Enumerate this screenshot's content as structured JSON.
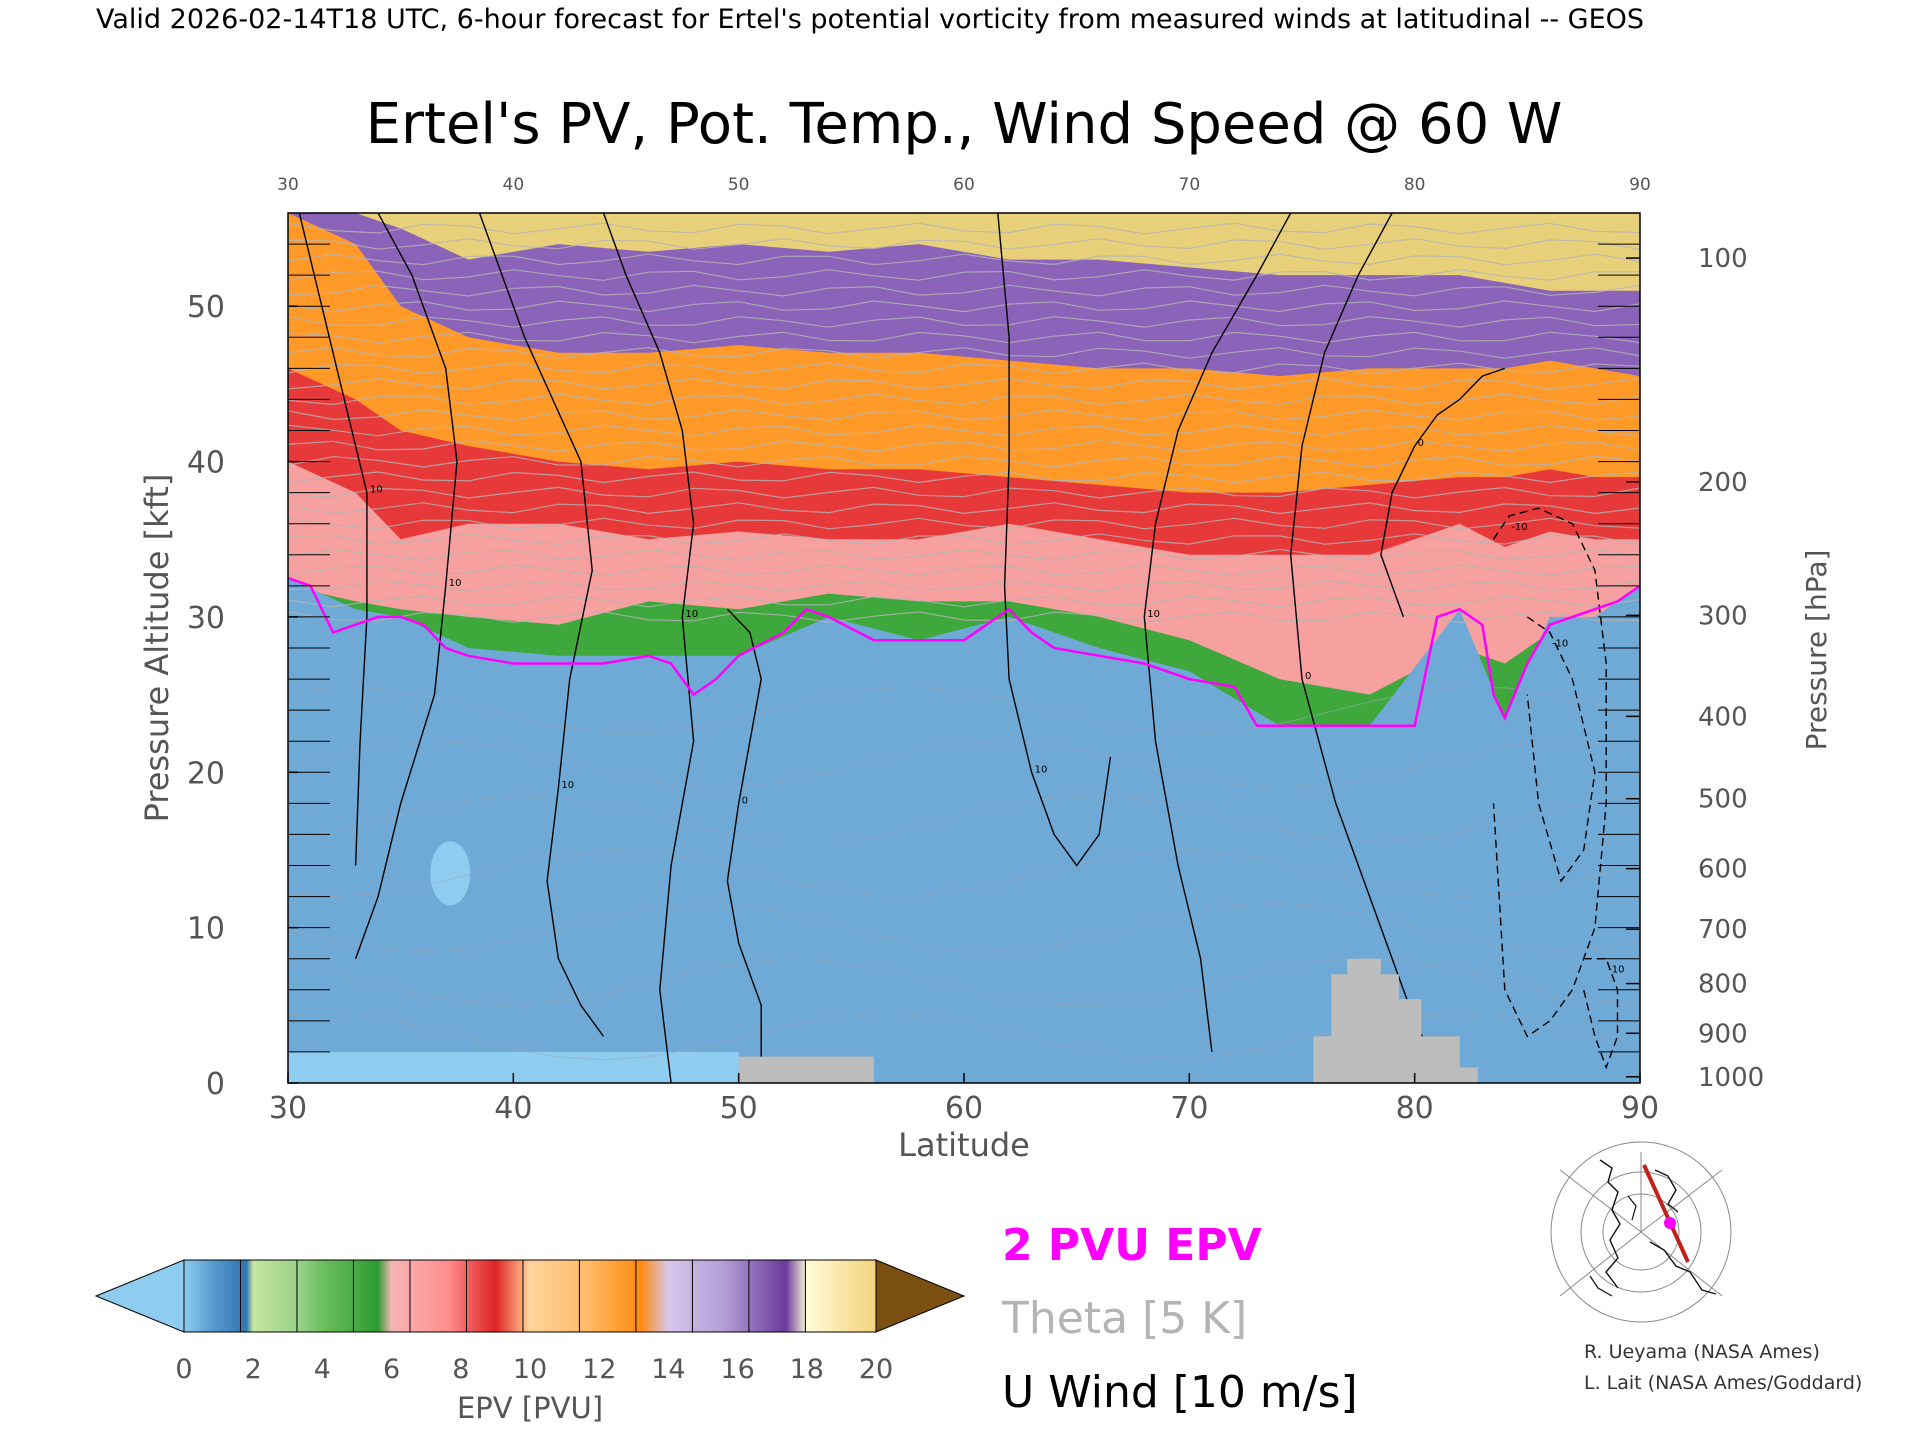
{
  "header": {
    "valid_line": "Valid 2026-02-14T18 UTC, 6-hour forecast for Ertel's potential vorticity from measured winds at latitudinal -- GEOS"
  },
  "chart_data": {
    "type": "heatmap",
    "title": "Ertel's PV, Pot. Temp., Wind Speed @ 60 W",
    "xlabel": "Latitude",
    "ylabel_left": "Pressure Altitude [kft]",
    "ylabel_right": "Pressure [hPa]",
    "xlim": [
      30,
      90
    ],
    "ylim": [
      0,
      56
    ],
    "x_ticks": [
      "30",
      "40",
      "50",
      "60",
      "70",
      "80",
      "90"
    ],
    "y_ticks_left": [
      "0",
      "10",
      "20",
      "30",
      "40",
      "50"
    ],
    "y_ticks_right": [
      {
        "label": "100",
        "kft": 53.1
      },
      {
        "label": "200",
        "kft": 38.7
      },
      {
        "label": "300",
        "kft": 30.1
      },
      {
        "label": "400",
        "kft": 23.6
      },
      {
        "label": "500",
        "kft": 18.3
      },
      {
        "label": "600",
        "kft": 13.8
      },
      {
        "label": "700",
        "kft": 9.9
      },
      {
        "label": "800",
        "kft": 6.4
      },
      {
        "label": "900",
        "kft": 3.2
      },
      {
        "label": "1000",
        "kft": 0.4
      }
    ],
    "epv_layer_tops_kft": [
      {
        "name": "stratosphere",
        "lat": [
          30,
          33,
          35,
          38,
          42,
          46,
          50,
          54,
          58,
          62,
          66,
          70,
          74,
          78,
          82,
          84,
          86,
          88,
          90
        ],
        "top": [
          56,
          56,
          56,
          56,
          56,
          56,
          56,
          56,
          56,
          56,
          56,
          56,
          56,
          56,
          56,
          56,
          56,
          56,
          56
        ]
      },
      {
        "name": "purple",
        "lat": [
          30,
          33,
          35,
          38,
          42,
          46,
          50,
          54,
          58,
          62,
          66,
          70,
          74,
          78,
          82,
          84,
          86,
          88,
          90
        ],
        "top": [
          56,
          56,
          55,
          53,
          54,
          53.5,
          54,
          53.5,
          54,
          53,
          53,
          52.5,
          52,
          52,
          52,
          51.5,
          51,
          51,
          51
        ]
      },
      {
        "name": "orange",
        "lat": [
          30,
          33,
          35,
          38,
          42,
          46,
          50,
          54,
          58,
          62,
          66,
          70,
          74,
          78,
          82,
          84,
          86,
          88,
          90
        ],
        "top": [
          56,
          54,
          50,
          48,
          47,
          47,
          47.5,
          47,
          47,
          46.5,
          46,
          46,
          45.5,
          46,
          46,
          46,
          46.5,
          46,
          45.5
        ]
      },
      {
        "name": "red",
        "lat": [
          30,
          33,
          35,
          38,
          42,
          46,
          50,
          54,
          58,
          62,
          66,
          70,
          74,
          78,
          82,
          84,
          86,
          88,
          90
        ],
        "top": [
          46,
          44,
          42,
          41,
          40,
          39.5,
          40,
          39.5,
          39.5,
          39,
          38.5,
          38,
          38,
          38.5,
          39,
          39,
          39.5,
          39,
          39
        ]
      },
      {
        "name": "pink",
        "lat": [
          30,
          33,
          35,
          38,
          42,
          46,
          50,
          54,
          58,
          62,
          66,
          70,
          74,
          78,
          82,
          84,
          86,
          88,
          90
        ],
        "top": [
          40,
          38,
          35,
          36,
          36,
          35,
          35.5,
          35,
          35,
          36,
          35,
          34,
          34,
          34,
          36,
          34.5,
          35.5,
          35,
          35
        ]
      },
      {
        "name": "green",
        "lat": [
          30,
          33,
          35,
          38,
          42,
          46,
          50,
          54,
          58,
          62,
          66,
          70,
          74,
          78,
          82,
          84,
          86,
          88,
          90
        ],
        "top": [
          32,
          31,
          30.5,
          30,
          29.5,
          31,
          30.5,
          31.5,
          31,
          31,
          30,
          28.5,
          26,
          25,
          28,
          27,
          29,
          30,
          31
        ]
      },
      {
        "name": "blue",
        "lat": [
          30,
          33,
          35,
          38,
          42,
          46,
          50,
          54,
          58,
          62,
          66,
          70,
          74,
          78,
          82,
          84,
          86,
          88,
          90
        ],
        "top": [
          32.5,
          30.5,
          30,
          28,
          27.5,
          27.5,
          27.5,
          30,
          28.5,
          30,
          28,
          26.5,
          23,
          23,
          30.5,
          23.5,
          30,
          30,
          32
        ]
      }
    ],
    "pv2_line": {
      "name": "2 PVU EPV",
      "lat": [
        30,
        31,
        32,
        33,
        34,
        35,
        36,
        37,
        38,
        40,
        42,
        44,
        46,
        47,
        48,
        49,
        50,
        52,
        53,
        54,
        56,
        58,
        60,
        61,
        62,
        63,
        64,
        66,
        68,
        70,
        72,
        73,
        74,
        76,
        78,
        80,
        81,
        82,
        83,
        83.5,
        84,
        85,
        86,
        87,
        88,
        89,
        90
      ],
      "kft": [
        32.5,
        32,
        29,
        29.5,
        30,
        30,
        29.5,
        28,
        27.5,
        27,
        27,
        27,
        27.5,
        27,
        25,
        26,
        27.5,
        29,
        30.5,
        30,
        28.5,
        28.5,
        28.5,
        29.5,
        30.5,
        29,
        28,
        27.5,
        27,
        26,
        25.5,
        23,
        23,
        23,
        23,
        23,
        30,
        30.5,
        29.5,
        25,
        23.5,
        27,
        29.5,
        30,
        30.5,
        31,
        32
      ]
    },
    "u_wind_contours": [
      {
        "label": "10",
        "lat": [
          30.5,
          31.5,
          32.5,
          33.5,
          33.5,
          33.2,
          33.0
        ],
        "kft": [
          56,
          50,
          44,
          38,
          30,
          22,
          14
        ]
      },
      {
        "label": "10",
        "lat": [
          34.0,
          35.5,
          37.0,
          37.5,
          37.0,
          36.5,
          35.0,
          34.0,
          33.0
        ],
        "kft": [
          56,
          52,
          46,
          40,
          32,
          25,
          18,
          12,
          8
        ]
      },
      {
        "label": "10",
        "lat": [
          38.5,
          40.5,
          43.0,
          43.5,
          42.5,
          42.0,
          41.5,
          42.0,
          43.0,
          44.0
        ],
        "kft": [
          56,
          48,
          40,
          33,
          26,
          19,
          13,
          8,
          5,
          3
        ]
      },
      {
        "label": "0",
        "lat": [
          49.5,
          50.5,
          51.0,
          50.5,
          50.0,
          49.5,
          50.0,
          51.0,
          51.0
        ],
        "kft": [
          30.5,
          29,
          26,
          22,
          18,
          13,
          9,
          5,
          0
        ]
      },
      {
        "label": "10",
        "lat": [
          44.0,
          45.0,
          46.5,
          47.5,
          48.0,
          47.5,
          48.0,
          47.0,
          46.5,
          47.0
        ],
        "kft": [
          56,
          52,
          47,
          42,
          36,
          30,
          22,
          14,
          6,
          0
        ]
      },
      {
        "label": "10",
        "lat": [
          61.5,
          62.0,
          62.0,
          61.8,
          62.0,
          63.0,
          64.0,
          65.0,
          66.0,
          66.5
        ],
        "kft": [
          56,
          48,
          40,
          32,
          26,
          20,
          16,
          14,
          16,
          21
        ]
      },
      {
        "label": "10",
        "lat": [
          74.5,
          73.0,
          71.0,
          69.5,
          68.5,
          68.0,
          68.5,
          69.5,
          70.5,
          71.0
        ],
        "kft": [
          56,
          52,
          47,
          42,
          36,
          30,
          22,
          14,
          8,
          2
        ]
      },
      {
        "label": "0",
        "lat": [
          79.0,
          77.5,
          76.0,
          75.0,
          74.5,
          75.0,
          76.5,
          78.5,
          80.0,
          81.0
        ],
        "kft": [
          56,
          52,
          47,
          41,
          34,
          26,
          18,
          10,
          4,
          1
        ]
      },
      {
        "label": "0",
        "lat": [
          84.0,
          83.0,
          82.0,
          81.0,
          80.0,
          79.0,
          78.5,
          79.5
        ],
        "kft": [
          46,
          45.5,
          44,
          43,
          41,
          38,
          34,
          30
        ]
      }
    ],
    "u_wind_negative_contours": [
      {
        "label": "-10",
        "lat": [
          83.5,
          84.2,
          85.5,
          87.0,
          88.0,
          88.5,
          88.5,
          88.0,
          87.0,
          86.0,
          85.0,
          84.0,
          83.5
        ],
        "kft": [
          35,
          36.5,
          37,
          36,
          33,
          27,
          18,
          10,
          6,
          4,
          3,
          6,
          18
        ]
      },
      {
        "label": "-10",
        "lat": [
          85.0,
          86.0,
          87.0,
          88.0,
          87.5,
          86.5,
          85.5,
          85.0
        ],
        "kft": [
          30,
          29,
          26,
          20,
          15,
          13,
          18,
          25
        ]
      },
      {
        "label": "-10",
        "lat": [
          87.5,
          88.5,
          89.0,
          89.0,
          88.5,
          88.0,
          87.5
        ],
        "kft": [
          8,
          8,
          6,
          3,
          1,
          3,
          6
        ]
      }
    ],
    "terrain": [
      {
        "lat": [
          50.0,
          50.0,
          56.0,
          56.0
        ],
        "kft": [
          0,
          1.7,
          1.7,
          0
        ]
      },
      {
        "lat": [
          75.5,
          75.5,
          76.3,
          76.3,
          77.0,
          77.0,
          78.5,
          78.5,
          79.3,
          79.3,
          80.3,
          80.3,
          82.0,
          82.0,
          82.8,
          82.8
        ],
        "kft": [
          0,
          3.0,
          3.0,
          7.0,
          7.0,
          8.0,
          8.0,
          7.0,
          7.0,
          5.4,
          5.4,
          3.0,
          3.0,
          1.0,
          1.0,
          0
        ]
      }
    ],
    "colorbar": {
      "label": "EPV [PVU]",
      "ticks": [
        "0",
        "2",
        "4",
        "6",
        "8",
        "10",
        "12",
        "14",
        "16",
        "18",
        "20"
      ],
      "colors": [
        "#7fc6ee",
        "#5a9ccf",
        "#2f73b2",
        "#96d087",
        "#2e9b32",
        "#ff9b9b",
        "#de2323",
        "#ffbc6a",
        "#ff8a10",
        "#b49ed6",
        "#6b3a9c",
        "#fff0a0",
        "#7a4f10"
      ]
    },
    "legend": [
      {
        "label": "2 PVU EPV",
        "color": "#ff00ff"
      },
      {
        "label": "Theta [5 K]",
        "color": "#b4b4b4"
      },
      {
        "label": "U Wind [10 m/s]",
        "color": "#000000"
      }
    ]
  },
  "inset_map": {
    "icon": "polar-map-icon",
    "track_color": "#c0221a",
    "marker_color": "#ff00ff"
  },
  "credits": {
    "line1": "R. Ueyama (NASA Ames)",
    "line2": "L. Lait (NASA Ames/Goddard)"
  }
}
